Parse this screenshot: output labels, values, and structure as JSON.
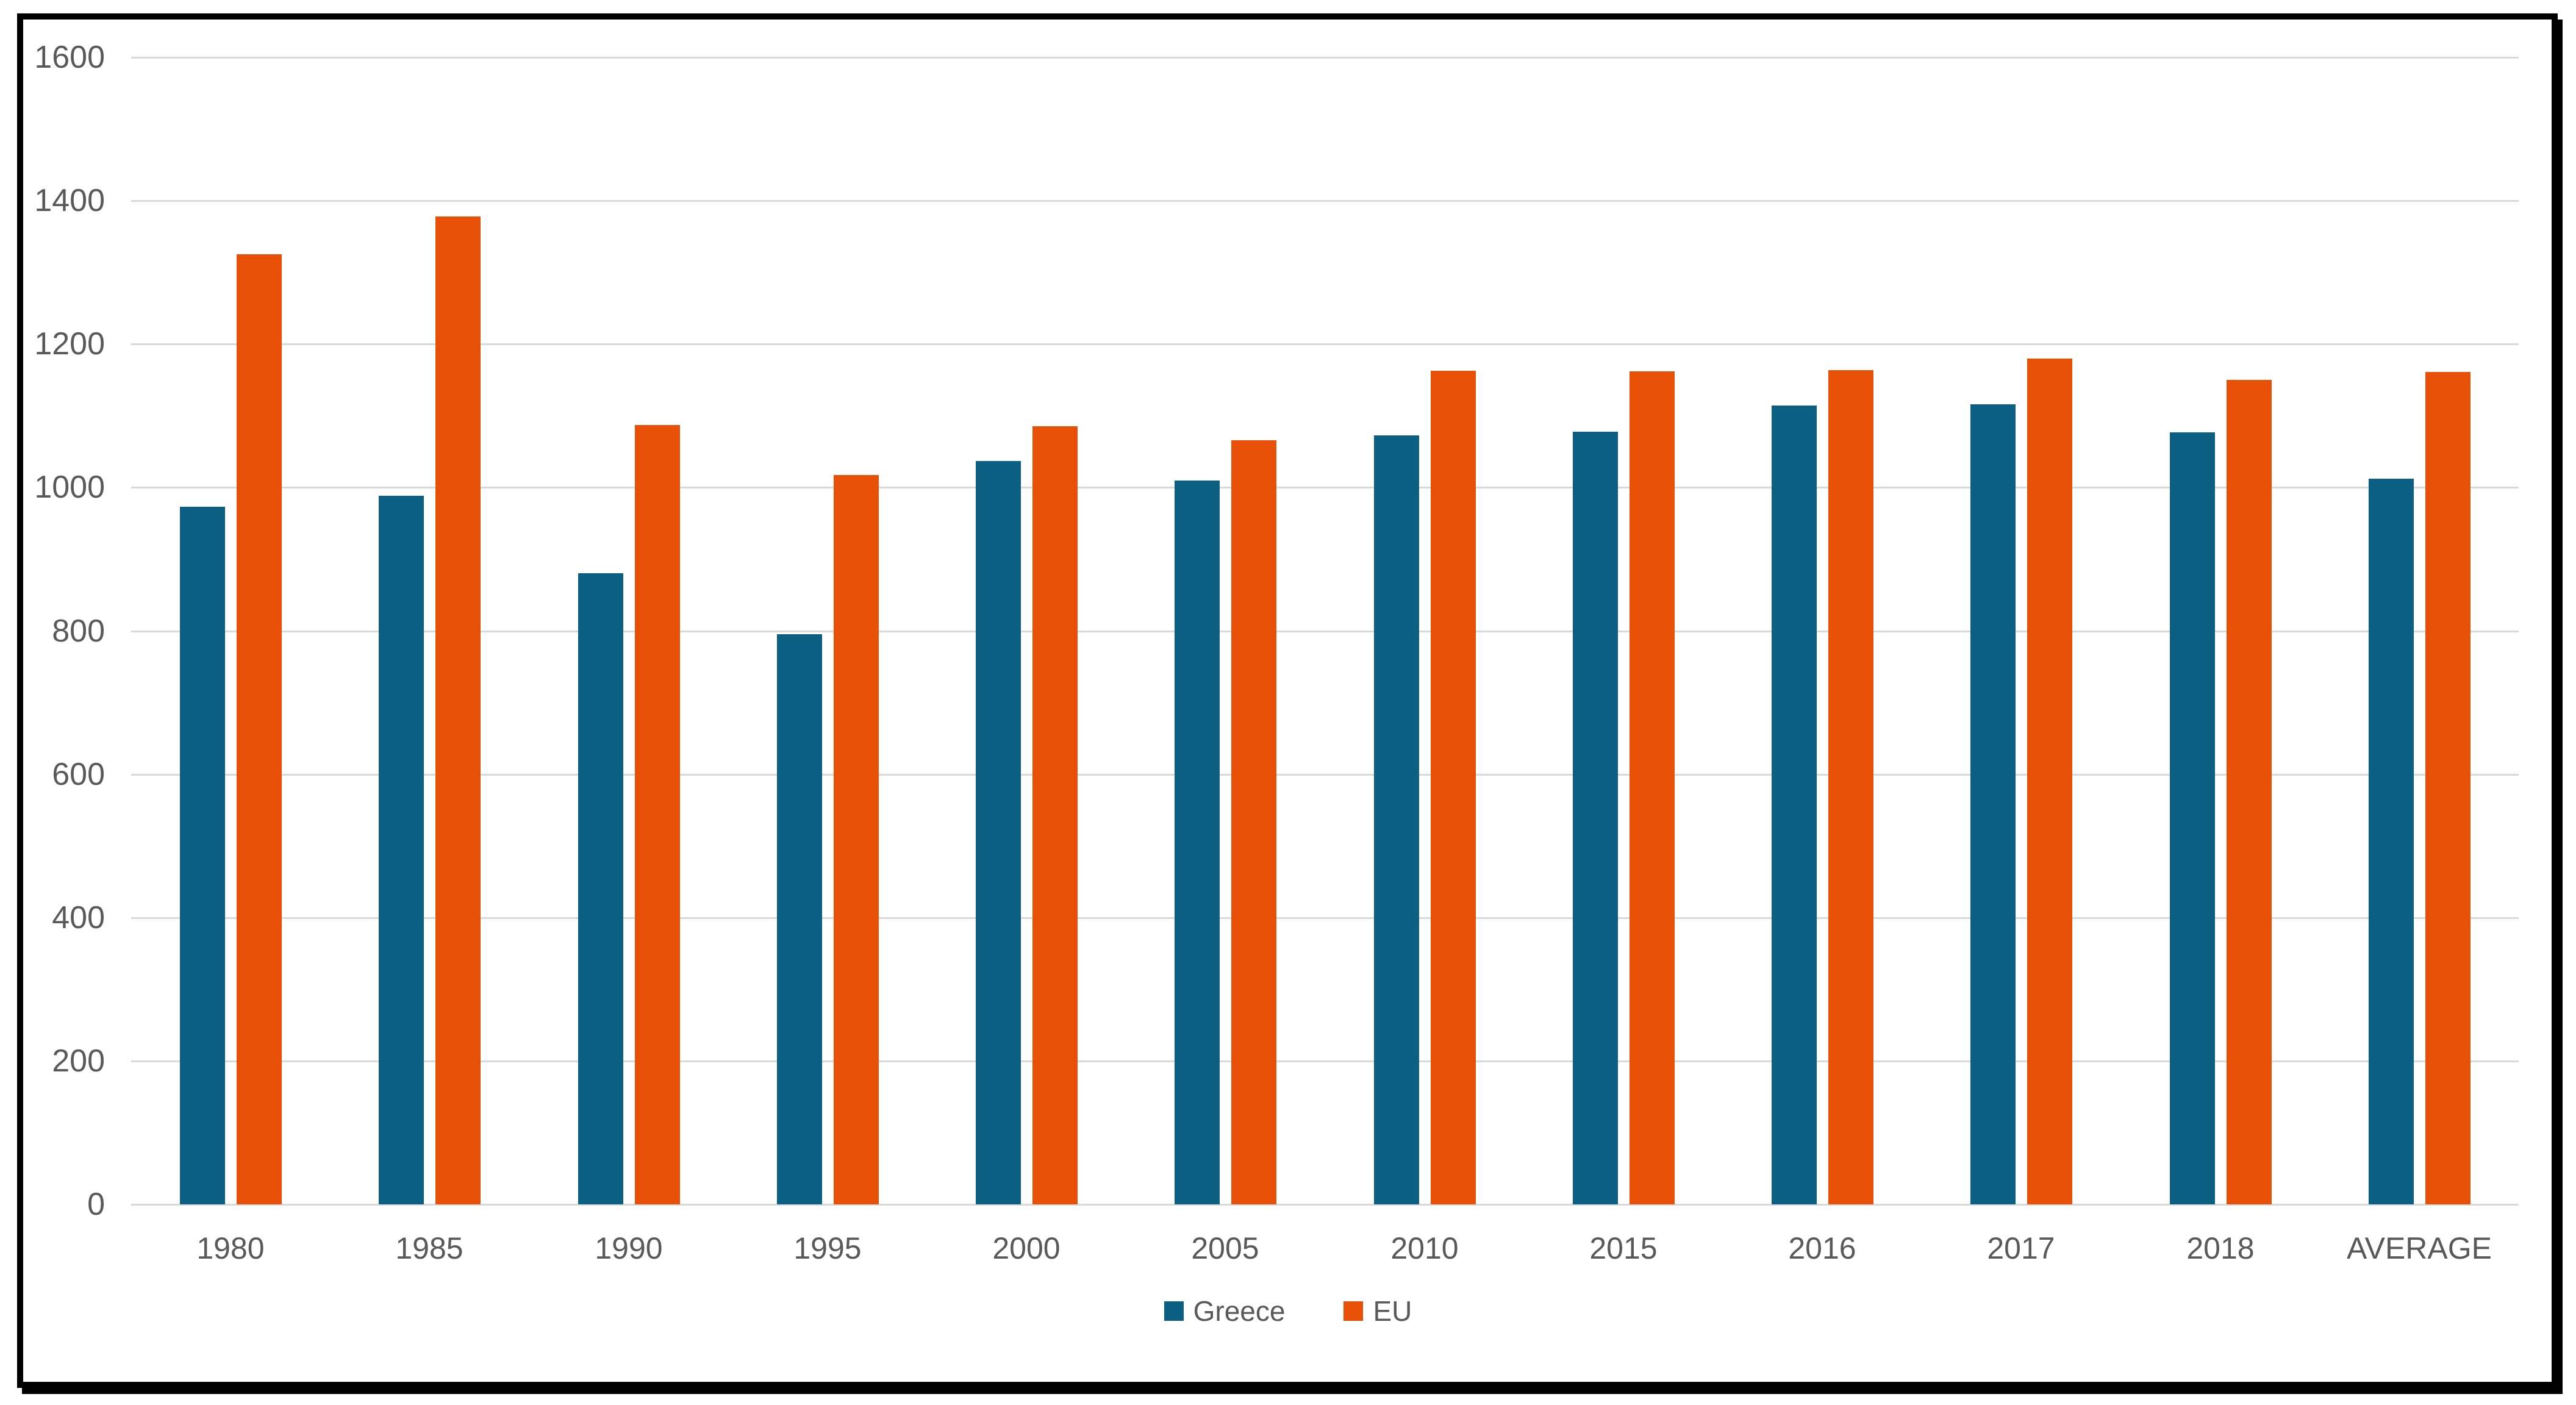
{
  "chart_data": {
    "type": "bar",
    "title": "",
    "categories": [
      "1980",
      "1985",
      "1990",
      "1995",
      "2000",
      "2005",
      "2010",
      "2015",
      "2016",
      "2017",
      "2018",
      "AVERAGE"
    ],
    "series": [
      {
        "name": "Greece",
        "color": "#0B5F82",
        "values": [
          973,
          988,
          880,
          795,
          1037,
          1010,
          1073,
          1078,
          1114,
          1116,
          1077,
          1012
        ]
      },
      {
        "name": "EU",
        "color": "#E85008",
        "values": [
          1325,
          1378,
          1087,
          1017,
          1085,
          1066,
          1163,
          1162,
          1164,
          1180,
          1150,
          1161
        ]
      }
    ],
    "xlabel": "",
    "ylabel": "",
    "ylim": [
      0,
      1600
    ],
    "yticks": [
      0,
      200,
      400,
      600,
      800,
      1000,
      1200,
      1400,
      1600
    ],
    "grid": true,
    "legend_position": "bottom"
  },
  "colors": {
    "greece": "#0B5F82",
    "eu": "#E85008",
    "gridline": "#D9D9D9",
    "axis_text": "#595959",
    "frame": "#000000",
    "background": "#FFFFFF"
  },
  "legend": {
    "greece_label": "Greece",
    "eu_label": "EU"
  }
}
